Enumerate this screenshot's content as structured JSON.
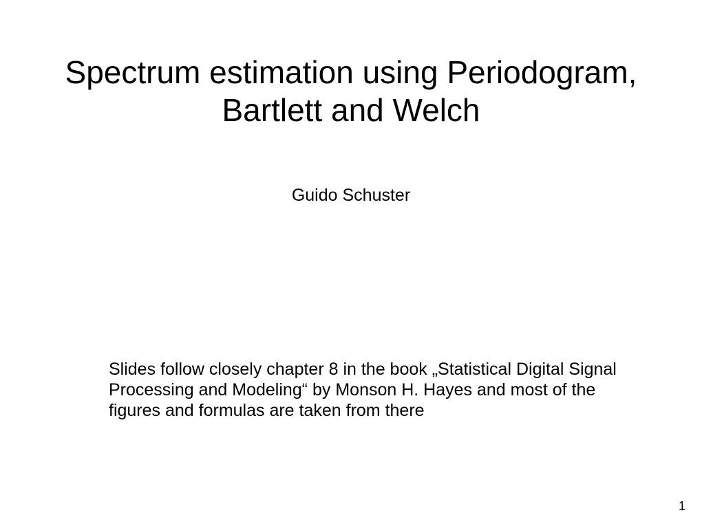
{
  "slide": {
    "title": "Spectrum estimation using Periodogram, Bartlett and Welch",
    "author": "Guido Schuster",
    "body": "Slides follow closely chapter 8 in the book „Statistical Digital Signal Processing and Modeling“ by Monson H. Hayes and most of the figures and formulas are taken from there",
    "page_number": "1"
  },
  "styling": {
    "background_color": "#ffffff",
    "text_color": "#000000",
    "title_fontsize": 46,
    "author_fontsize": 25,
    "body_fontsize": 25,
    "page_number_fontsize": 18,
    "font_family": "Arial"
  }
}
